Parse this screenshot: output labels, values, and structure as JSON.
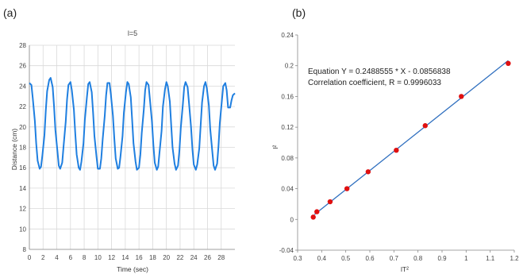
{
  "chart_data": [
    {
      "type": "line",
      "panel_label": "(a)",
      "title": "l=5",
      "xlabel": "Time (sec)",
      "ylabel": "Distance (cm)",
      "xlim": [
        0,
        30
      ],
      "ylim": [
        8,
        28
      ],
      "xticks": [
        0,
        2,
        4,
        6,
        8,
        10,
        12,
        14,
        16,
        18,
        20,
        22,
        24,
        26,
        28
      ],
      "yticks": [
        8,
        10,
        12,
        14,
        16,
        18,
        20,
        22,
        24,
        26,
        28
      ],
      "grid": true,
      "color": "#1f7fe0",
      "series": [
        {
          "x": [
            0.0,
            0.3,
            0.5,
            0.8,
            1.0,
            1.2,
            1.5,
            1.7,
            1.9,
            2.2,
            2.4,
            2.6,
            2.9,
            3.1,
            3.4,
            3.6,
            3.8,
            4.1,
            4.3,
            4.5,
            4.8,
            5.0,
            5.3,
            5.5,
            5.7,
            6.0,
            6.2,
            6.5,
            6.7,
            6.9,
            7.2,
            7.4,
            7.6,
            7.9,
            8.1,
            8.4,
            8.6,
            8.8,
            9.1,
            9.3,
            9.5,
            9.8,
            10.0,
            10.3,
            10.5,
            10.7,
            11.0,
            11.2,
            11.4,
            11.7,
            11.9,
            12.2,
            12.4,
            12.6,
            12.9,
            13.1,
            13.3,
            13.6,
            13.8,
            14.1,
            14.3,
            14.5,
            14.8,
            15.0,
            15.2,
            15.5,
            15.7,
            16.0,
            16.2,
            16.4,
            16.7,
            16.9,
            17.1,
            17.4,
            17.6,
            17.9,
            18.1,
            18.3,
            18.6,
            18.8,
            19.0,
            19.3,
            19.5,
            19.8,
            20.0,
            20.2,
            20.5,
            20.7,
            20.9,
            21.2,
            21.4,
            21.7,
            21.9,
            22.1,
            22.4,
            22.6,
            22.8,
            23.1,
            23.3,
            23.6,
            23.8,
            24.0,
            24.3,
            24.5,
            24.8,
            25.0,
            25.2,
            25.5,
            25.7,
            25.9,
            26.2,
            26.4,
            26.7,
            26.9,
            27.1,
            27.4,
            27.6,
            27.8,
            28.1,
            28.3,
            28.6,
            28.8,
            29.0,
            29.3,
            29.5,
            29.7,
            30.0
          ],
          "y": [
            24.3,
            24.1,
            22.8,
            20.6,
            18.4,
            16.7,
            15.9,
            16.1,
            17.2,
            19.2,
            21.6,
            23.5,
            24.6,
            24.8,
            23.9,
            22.0,
            19.7,
            17.6,
            16.2,
            15.9,
            16.5,
            18.2,
            20.5,
            22.7,
            24.1,
            24.4,
            23.6,
            21.7,
            19.4,
            17.3,
            16.0,
            15.8,
            16.6,
            18.4,
            20.7,
            22.9,
            24.2,
            24.4,
            23.4,
            21.4,
            19.1,
            17.1,
            15.9,
            15.9,
            16.9,
            18.8,
            21.1,
            23.1,
            24.3,
            24.3,
            23.2,
            21.1,
            18.8,
            16.9,
            15.9,
            16.0,
            17.1,
            19.1,
            21.4,
            23.4,
            24.4,
            24.2,
            22.9,
            20.7,
            18.4,
            16.6,
            15.8,
            16.0,
            17.3,
            19.4,
            21.7,
            23.6,
            24.4,
            24.1,
            22.7,
            20.5,
            18.2,
            16.5,
            15.8,
            16.1,
            17.5,
            19.6,
            22.0,
            23.7,
            24.4,
            24.0,
            22.5,
            20.2,
            18.0,
            16.4,
            15.8,
            16.2,
            17.7,
            19.9,
            22.2,
            23.9,
            24.4,
            23.9,
            22.3,
            20.0,
            17.8,
            16.3,
            15.8,
            16.3,
            17.9,
            20.1,
            22.4,
            24.0,
            24.4,
            23.8,
            22.1,
            19.8,
            17.6,
            16.2,
            15.8,
            16.4,
            18.1,
            20.4,
            22.6,
            24.0,
            24.3,
            23.6,
            21.9,
            21.9,
            22.6,
            23.1,
            23.3
          ]
        }
      ]
    },
    {
      "type": "scatter",
      "panel_label": "(b)",
      "xlabel": "lT²",
      "ylabel": "l²",
      "xlim": [
        0.3,
        1.2
      ],
      "ylim": [
        -0.04,
        0.24
      ],
      "xticks": [
        0.3,
        0.4,
        0.5,
        0.6,
        0.7,
        0.8,
        0.9,
        1.0,
        1.1,
        1.2
      ],
      "xtick_labels": [
        "0.3",
        "0.4",
        "0.5",
        "0.6",
        "0.7",
        "0.8",
        "0.9",
        "1",
        "1.1",
        "1.2"
      ],
      "yticks": [
        -0.04,
        0,
        0.04,
        0.08,
        0.12,
        0.16,
        0.2,
        0.24
      ],
      "ytick_labels": [
        "-0.04",
        "0",
        "0.04",
        "0.08",
        "0.12",
        "0.16",
        "0.2",
        "0.24"
      ],
      "grid": false,
      "point_color": "#e01010",
      "line_color": "#2f6fbf",
      "points": {
        "x": [
          0.365,
          0.38,
          0.435,
          0.505,
          0.593,
          0.71,
          0.83,
          0.98,
          1.175
        ],
        "y": [
          0.003,
          0.01,
          0.023,
          0.04,
          0.062,
          0.09,
          0.122,
          0.16,
          0.203
        ]
      },
      "fit": {
        "slope": 0.2488555,
        "intercept": -0.0856838,
        "x_range": [
          0.37,
          1.175
        ]
      },
      "annotations": [
        "Equation Y = 0.2488555 * X - 0.0856838",
        "Correlation coefficient, R = 0.9996033"
      ]
    }
  ]
}
